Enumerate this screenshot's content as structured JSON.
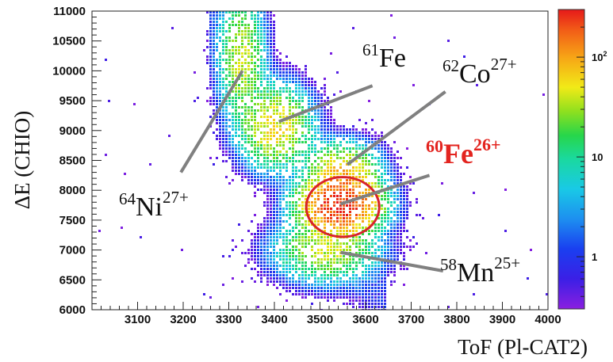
{
  "chart_data": {
    "type": "heatmap",
    "xlabel": "ToF (Pl-CAT2)",
    "ylabel": "ΔE (CHIO)",
    "xlim": [
      3000,
      4000
    ],
    "ylim": [
      6000,
      11000
    ],
    "x_ticks": [
      "3100",
      "3200",
      "3300",
      "3400",
      "3500",
      "3600",
      "3700",
      "3800",
      "3900",
      "4000"
    ],
    "y_ticks": [
      "6000",
      "6500",
      "7000",
      "7500",
      "8000",
      "8500",
      "9000",
      "9500",
      "10000",
      "10500",
      "11000"
    ],
    "colorbar": {
      "scale": "log",
      "ticks": [
        {
          "base": "1",
          "exp": "",
          "value": 1
        },
        {
          "base": "10",
          "exp": "",
          "value": 10
        },
        {
          "base": "10",
          "exp": "2",
          "value": 100
        }
      ],
      "range": [
        0.3,
        300
      ]
    },
    "clusters": [
      {
        "id": "Ni64",
        "x": 3330,
        "y": 10200,
        "sx": 24,
        "sy": 520,
        "peak": 40
      },
      {
        "id": "Fe61",
        "x": 3405,
        "y": 9050,
        "sx": 38,
        "sy": 330,
        "peak": 60
      },
      {
        "id": "Co62",
        "x": 3550,
        "y": 8300,
        "sx": 38,
        "sy": 230,
        "peak": 70
      },
      {
        "id": "Fe60",
        "x": 3545,
        "y": 7750,
        "sx": 42,
        "sy": 230,
        "peak": 300
      },
      {
        "id": "Mn58",
        "x": 3515,
        "y": 7000,
        "sx": 55,
        "sy": 260,
        "peak": 40
      }
    ],
    "highlight_ellipse": {
      "cx": 3550,
      "cy": 7720,
      "rx": 80,
      "ry": 500,
      "color": "#d8232a"
    },
    "annotations": [
      {
        "name": "ni64",
        "mass": "64",
        "element": "Ni",
        "charge": "27+",
        "highlight": false,
        "target": {
          "x": 3330,
          "y": 10000
        },
        "line_from": {
          "x": 3195,
          "y": 8300
        }
      },
      {
        "name": "fe61",
        "mass": "61",
        "element": "Fe",
        "charge": "",
        "highlight": false,
        "target": {
          "x": 3410,
          "y": 9150
        },
        "line_from": {
          "x": 3615,
          "y": 9750
        }
      },
      {
        "name": "co62",
        "mass": "62",
        "element": "Co",
        "charge": "27+",
        "highlight": false,
        "target": {
          "x": 3560,
          "y": 8430
        },
        "line_from": {
          "x": 3775,
          "y": 9650
        }
      },
      {
        "name": "fe60",
        "mass": "60",
        "element": "Fe",
        "charge": "26+",
        "highlight": true,
        "target": {
          "x": 3545,
          "y": 7770
        },
        "line_from": {
          "x": 3740,
          "y": 8250
        }
      },
      {
        "name": "mn58",
        "mass": "58",
        "element": "Mn",
        "charge": "25+",
        "highlight": false,
        "target": {
          "x": 3545,
          "y": 6960
        },
        "line_from": {
          "x": 3770,
          "y": 6650
        }
      }
    ]
  },
  "colors": {
    "highlight_text": "#e3241f",
    "annotation_line": "#808080",
    "ellipse": "#d8232a"
  }
}
